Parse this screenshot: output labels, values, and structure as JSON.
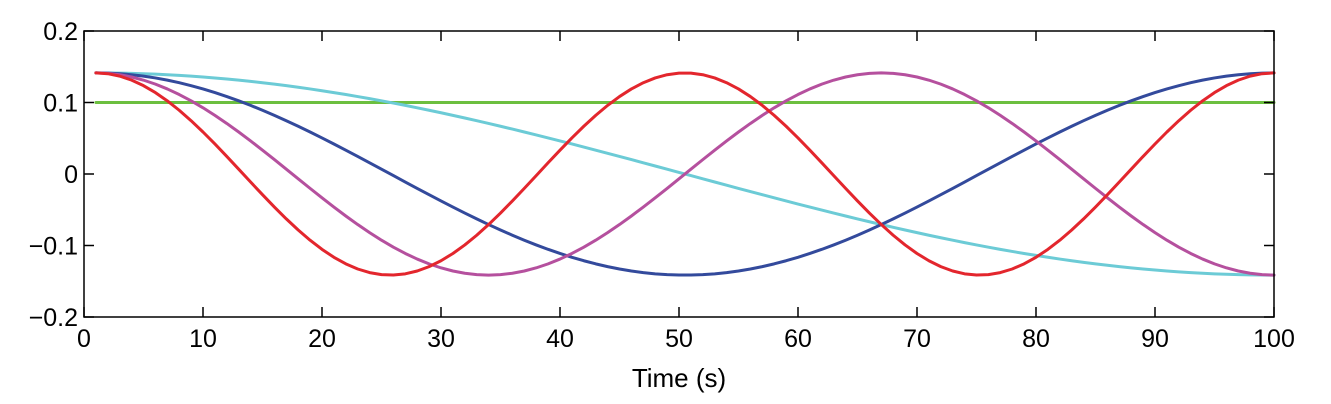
{
  "chart_data": {
    "type": "line",
    "title": "",
    "xlabel": "Time (s)",
    "ylabel": "",
    "xlim": [
      0,
      100
    ],
    "ylim": [
      -0.2,
      0.2
    ],
    "x_ticks": [
      0,
      10,
      20,
      30,
      40,
      50,
      60,
      70,
      80,
      90,
      100
    ],
    "x_tick_labels": [
      "0",
      "10",
      "20",
      "30",
      "40",
      "50",
      "60",
      "70",
      "80",
      "90",
      "100"
    ],
    "y_ticks": [
      0.2,
      0.1,
      0,
      -0.1,
      -0.2
    ],
    "y_tick_labels": [
      "0.2",
      "0.1",
      "0",
      "−0.1",
      "−0.2"
    ],
    "grid": false,
    "legend": "none",
    "x_start": 1,
    "x_end": 100,
    "x_step": 1,
    "series": [
      {
        "color": "#6cbf3f",
        "values": [
          0.1,
          0.1
        ]
      },
      {
        "color": "#6ccbd6",
        "amplitude": 0.1414,
        "period_s": 198
      },
      {
        "color": "#334a9c",
        "amplitude": 0.1414,
        "period_s": 99
      },
      {
        "color": "#b5509e",
        "amplitude": 0.1414,
        "period_s": 66
      },
      {
        "color": "#e3262d",
        "amplitude": 0.1414,
        "period_s": 49.5
      }
    ]
  }
}
